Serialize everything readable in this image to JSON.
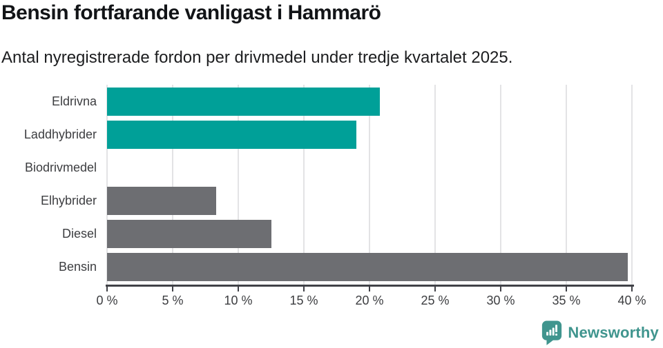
{
  "header": {
    "title": "Bensin fortfarande vanligast i Hammarö",
    "subtitle": "Antal nyregistrerade fordon per drivmedel under tredje kvartalet 2025."
  },
  "chart_data": {
    "type": "bar",
    "orientation": "horizontal",
    "title": "Bensin fortfarande vanligast i Hammarö",
    "subtitle": "Antal nyregistrerade fordon per drivmedel under tredje kvartalet 2025.",
    "categories": [
      "Eldrivna",
      "Laddhybrider",
      "Biodrivmedel",
      "Elhybrider",
      "Diesel",
      "Bensin"
    ],
    "values": [
      20.8,
      19.0,
      0,
      8.3,
      12.5,
      39.7
    ],
    "unit": "%",
    "bar_colors": [
      "#00a098",
      "#00a098",
      "#6d6e72",
      "#6d6e72",
      "#6d6e72",
      "#6d6e72"
    ],
    "highlight_color": "#00a098",
    "default_color": "#6d6e72",
    "xlabel": "",
    "ylabel": "",
    "xlim": [
      0,
      40
    ],
    "xtick_values": [
      0,
      5,
      10,
      15,
      20,
      25,
      30,
      35,
      40
    ],
    "xtick_labels": [
      "0 %",
      "5 %",
      "10 %",
      "15 %",
      "20 %",
      "25 %",
      "30 %",
      "35 %",
      "40 %"
    ],
    "grid": "vertical-only",
    "legend": "none"
  },
  "footer": {
    "brand": "Newsworthy",
    "logo_icon": "newsworthy-speech-bubble-bar-chart-icon",
    "brand_color": "#40958e"
  },
  "colors": {
    "background": "#ffffff",
    "axis": "#404147",
    "gridline": "#e3e3e5",
    "text": "#3c3d40"
  }
}
